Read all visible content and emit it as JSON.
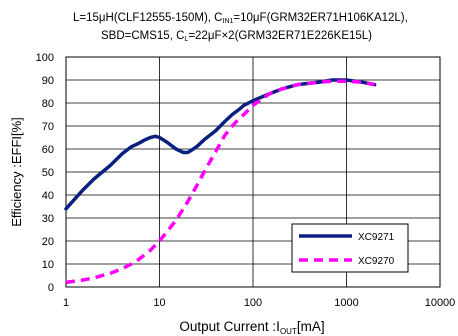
{
  "caption": {
    "line1": {
      "a": "L=15μH(CLF12555-150M),  C",
      "a_sub": "IN1",
      "b": "=10μF(GRM32ER71H106KA12L),"
    },
    "line2": {
      "a": "SBD=CMS15, C",
      "a_sub": "L",
      "b": "=22μF×2(GRM32ER71E226KE15L)"
    }
  },
  "chart_data": {
    "type": "line",
    "title": "",
    "xlabel": "Output Current :I",
    "xlabel_sub": "OUT",
    "xlabel_unit": "[mA]",
    "ylabel": "Efficiency :EFFI[%]",
    "xscale": "log",
    "xlim": [
      1,
      10000
    ],
    "ylim": [
      0,
      100
    ],
    "xticks": [
      "1",
      "10",
      "100",
      "1000",
      "10000"
    ],
    "yticks": [
      "0",
      "10",
      "20",
      "30",
      "40",
      "50",
      "60",
      "70",
      "80",
      "90",
      "100"
    ],
    "grid": true,
    "legend_position": "lower-right",
    "series": [
      {
        "name": "XC9271",
        "color": "#0a2080",
        "style": "solid",
        "x": [
          1,
          1.5,
          2,
          3,
          4,
          5,
          6,
          7,
          8,
          9,
          10,
          12,
          15,
          18,
          20,
          22,
          25,
          30,
          40,
          50,
          60,
          70,
          80,
          100,
          150,
          200,
          300,
          500,
          700,
          1000,
          1500,
          2000
        ],
        "y": [
          34,
          42,
          47,
          53,
          58,
          61,
          62.5,
          64,
          65,
          65.5,
          65,
          63,
          60,
          58.5,
          58.5,
          59.5,
          61,
          64,
          68,
          72,
          75,
          77,
          79,
          81,
          84,
          86,
          88,
          89,
          90,
          90,
          89,
          88
        ]
      },
      {
        "name": "XC9270",
        "color": "#ff00ff",
        "style": "dashed",
        "x": [
          1,
          1.5,
          2,
          3,
          4,
          5,
          6,
          8,
          10,
          12,
          15,
          20,
          25,
          30,
          40,
          50,
          60,
          70,
          80,
          100,
          150,
          200,
          300,
          500,
          700,
          1000,
          1500,
          2000
        ],
        "y": [
          2,
          3,
          4,
          6,
          8,
          10,
          12,
          16,
          20,
          24,
          29,
          37,
          44,
          50,
          59,
          66,
          70,
          73,
          75,
          79,
          84,
          86,
          88,
          89,
          89.5,
          89.5,
          89,
          88
        ]
      }
    ]
  }
}
